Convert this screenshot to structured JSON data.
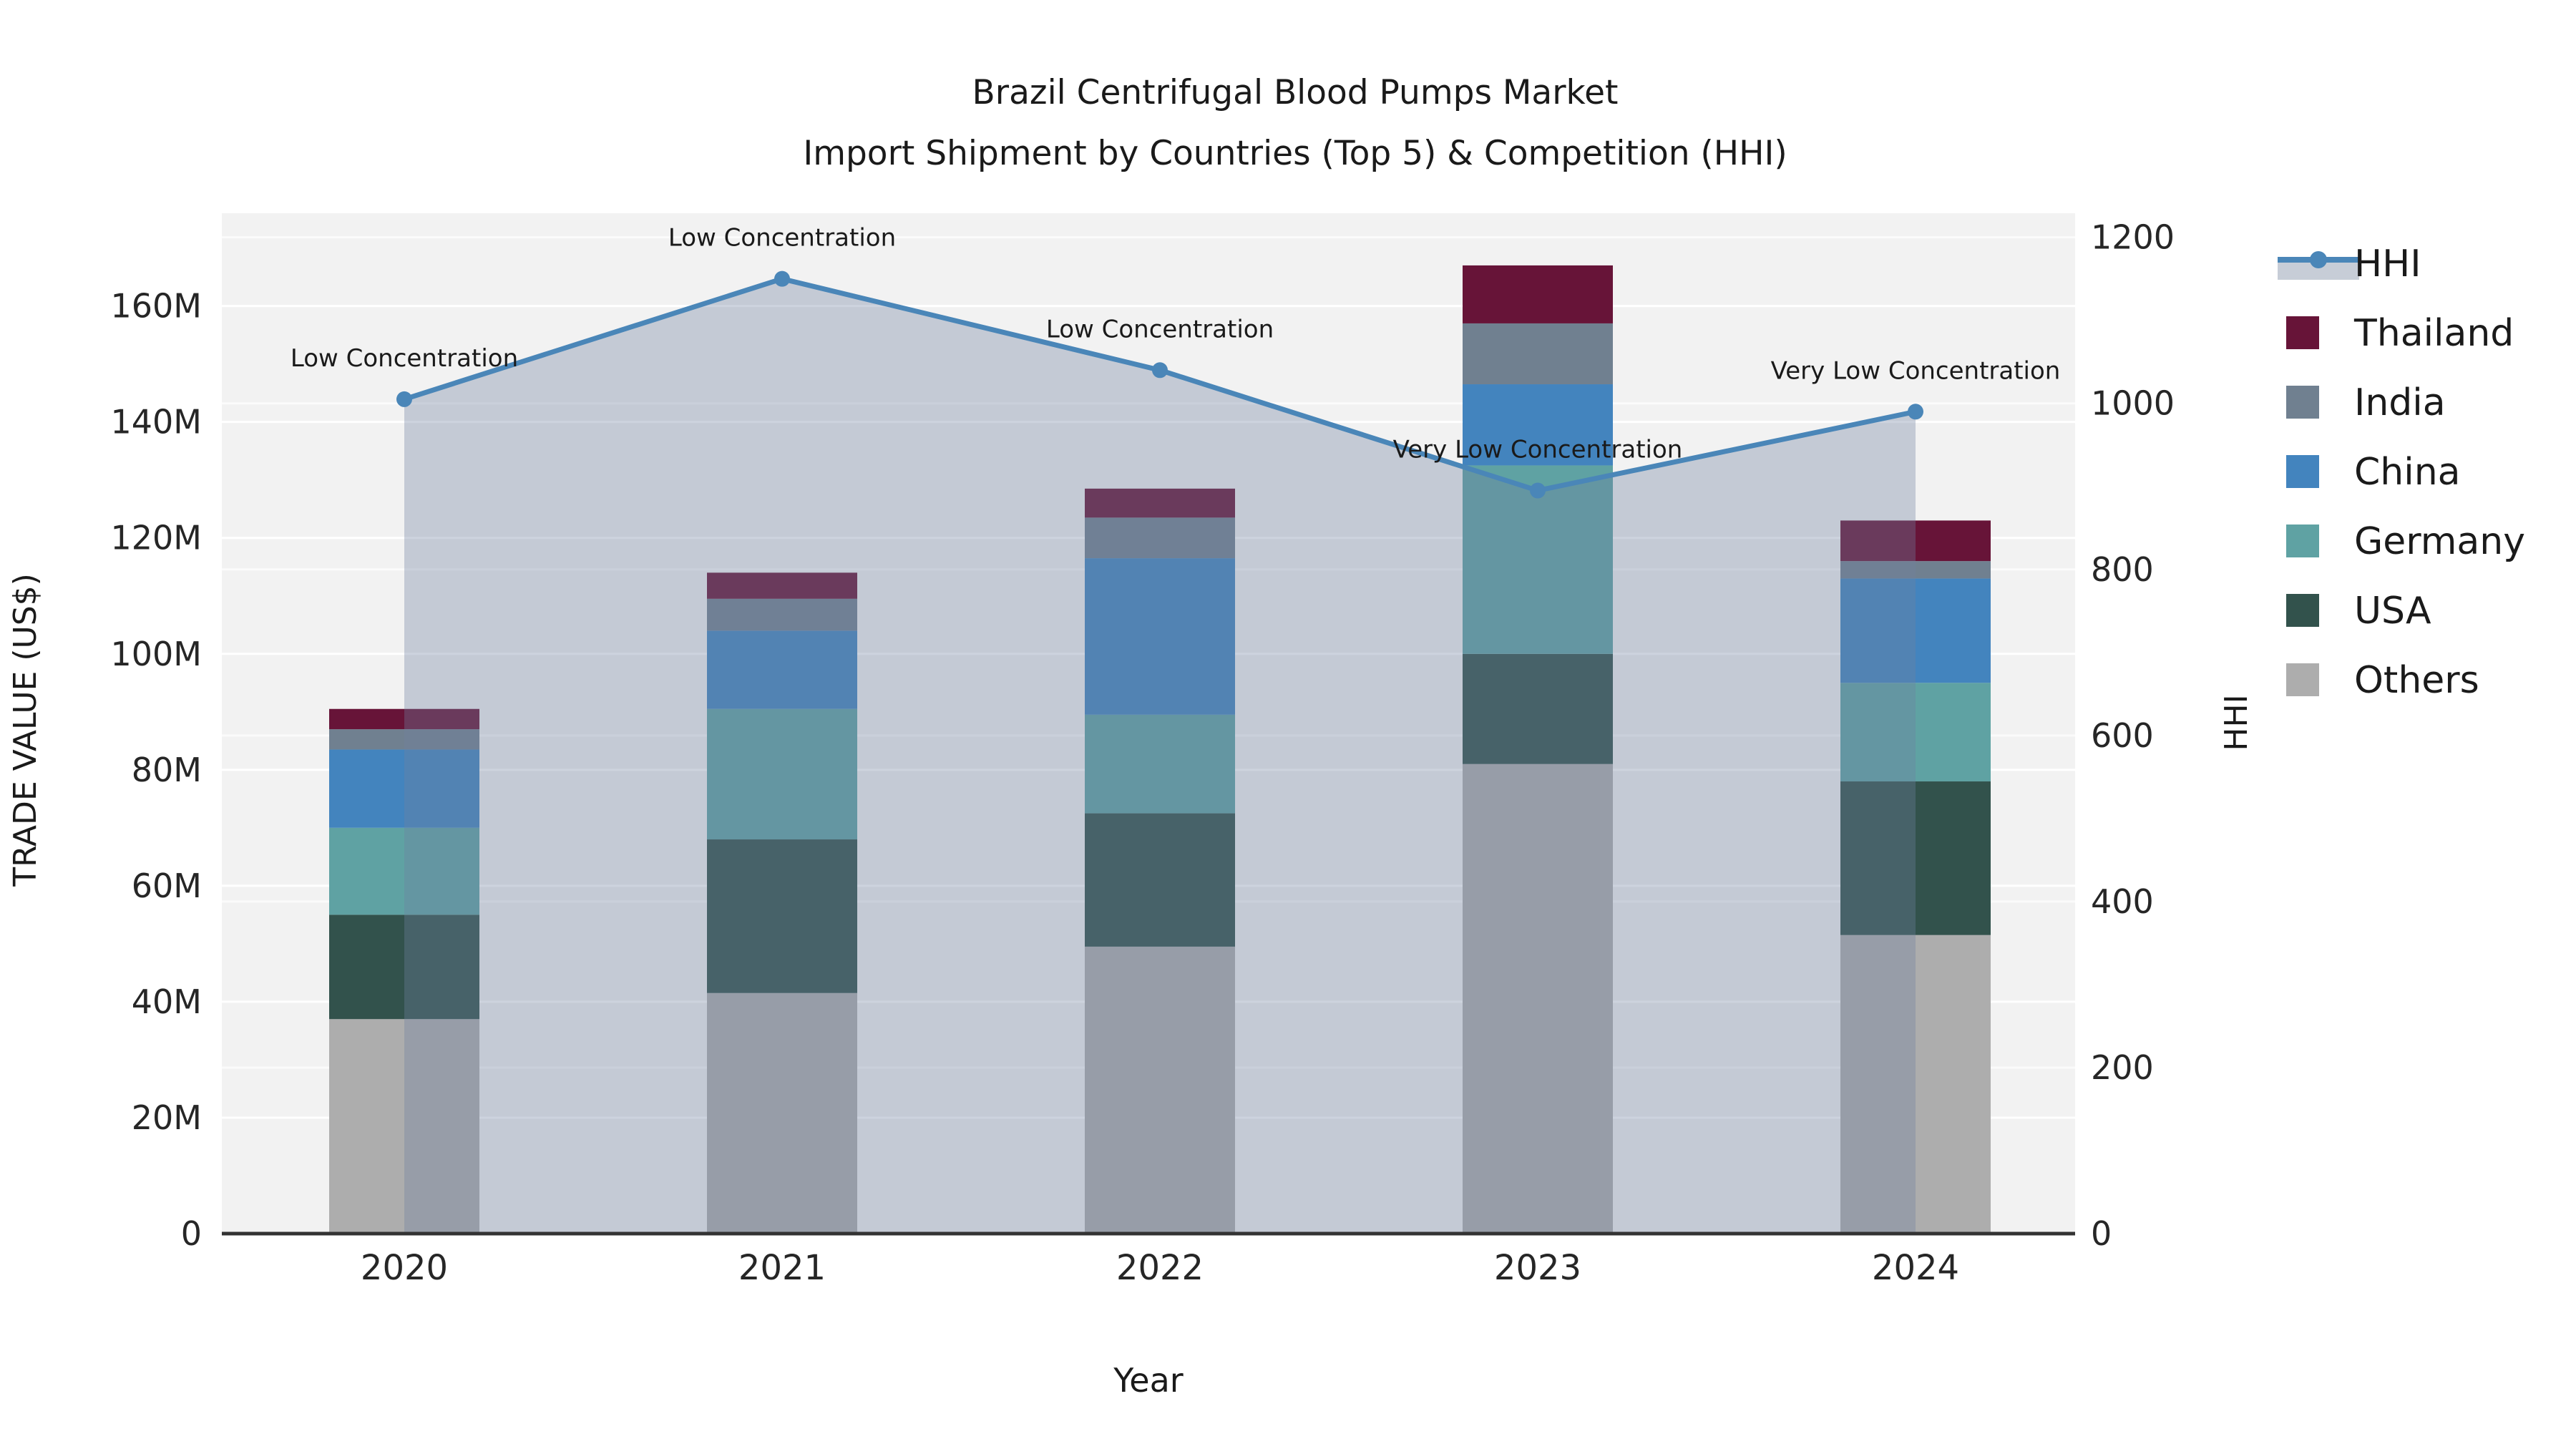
{
  "chart_data": {
    "type": "combo: stacked bar (left axis) + line with area fill (right axis)",
    "title_lines": [
      "Brazil Centrifugal Blood Pumps Market",
      "Import Shipment by Countries (Top 5) & Competition (HHI)"
    ],
    "xlabel": "Year",
    "ylabel_left": "TRADE VALUE (US$)",
    "ylabel_right": "HHI",
    "categories": [
      "2020",
      "2021",
      "2022",
      "2023",
      "2024"
    ],
    "value_unit": "millions of US$",
    "stack_series": [
      {
        "name": "Others",
        "color": "#ADADAD",
        "values": [
          37.0,
          41.5,
          49.5,
          81.0,
          51.5
        ]
      },
      {
        "name": "USA",
        "color": "#32524C",
        "values": [
          18.0,
          26.5,
          23.0,
          19.0,
          26.5
        ]
      },
      {
        "name": "Germany",
        "color": "#5FA2A3",
        "values": [
          15.0,
          22.5,
          17.0,
          32.5,
          17.0
        ]
      },
      {
        "name": "China",
        "color": "#4384BE",
        "values": [
          13.5,
          13.5,
          27.0,
          14.0,
          18.0
        ]
      },
      {
        "name": "India",
        "color": "#708090",
        "values": [
          3.5,
          5.5,
          7.0,
          10.5,
          3.0
        ]
      },
      {
        "name": "Thailand",
        "color": "#671438",
        "values": [
          3.5,
          4.5,
          5.0,
          10.0,
          7.0
        ]
      }
    ],
    "bar_totals": [
      90.5,
      114.0,
      128.5,
      167.0,
      123.0
    ],
    "line_series": {
      "name": "HHI",
      "color": "#4A86B8",
      "area_fill": "rgba(112,128,160,0.35)",
      "values": [
        1005,
        1150,
        1040,
        895,
        990
      ]
    },
    "annotations": [
      {
        "category": "2020",
        "text": "Low Concentration"
      },
      {
        "category": "2021",
        "text": "Low Concentration"
      },
      {
        "category": "2022",
        "text": "Low Concentration"
      },
      {
        "category": "2023",
        "text": "Very Low Concentration"
      },
      {
        "category": "2024",
        "text": "Very Low Concentration"
      }
    ],
    "y_ticks_left": {
      "values": [
        0,
        20,
        40,
        60,
        80,
        100,
        120,
        140,
        160
      ],
      "labels": [
        "0",
        "20M",
        "40M",
        "60M",
        "80M",
        "100M",
        "120M",
        "140M",
        "160M"
      ]
    },
    "y_ticks_right": {
      "values": [
        0,
        200,
        400,
        600,
        800,
        1000,
        1200
      ],
      "labels": [
        "0",
        "200",
        "400",
        "600",
        "800",
        "1000",
        "1200"
      ]
    },
    "ylim_left": [
      0,
      176
    ],
    "ylim_right": [
      0,
      1229
    ],
    "legend": {
      "position": "right",
      "entries": [
        "HHI",
        "Thailand",
        "India",
        "China",
        "Germany",
        "USA",
        "Others"
      ]
    },
    "style": {
      "plot_bg": "#F2F2F2",
      "grid_color": "#FFFFFF",
      "axis_line_color": "#333333",
      "text_color": "#262626"
    }
  }
}
